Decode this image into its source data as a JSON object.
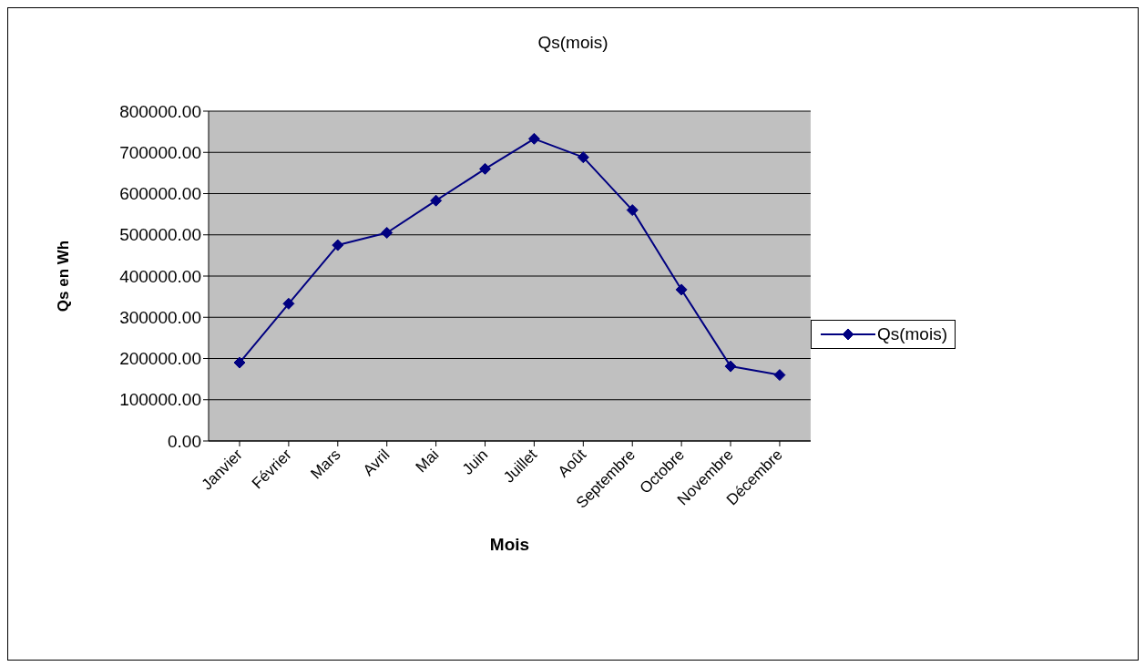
{
  "chart_data": {
    "type": "line",
    "title": "Qs(mois)",
    "xlabel": "Mois",
    "ylabel": "Qs en Wh",
    "categories": [
      "Janvier",
      "Février",
      "Mars",
      "Avril",
      "Mai",
      "Juin",
      "Juillet",
      "Août",
      "Septembre",
      "Octobre",
      "Novembre",
      "Décembre"
    ],
    "series": [
      {
        "name": "Qs(mois)",
        "color": "#000080",
        "values": [
          190000,
          333000,
          475000,
          505000,
          583000,
          660000,
          733000,
          688000,
          560000,
          367000,
          181000,
          160000
        ]
      }
    ],
    "ylim": [
      0,
      800000
    ],
    "yticks": [
      {
        "value": 0,
        "label": "0.00"
      },
      {
        "value": 100000,
        "label": "100000.00"
      },
      {
        "value": 200000,
        "label": "200000.00"
      },
      {
        "value": 300000,
        "label": "300000.00"
      },
      {
        "value": 400000,
        "label": "400000.00"
      },
      {
        "value": 500000,
        "label": "500000.00"
      },
      {
        "value": 600000,
        "label": "600000.00"
      },
      {
        "value": 700000,
        "label": "700000.00"
      },
      {
        "value": 800000,
        "label": "800000.00"
      }
    ],
    "grid": "y",
    "legend": "right",
    "marker": "diamond",
    "line_style": "solid"
  }
}
